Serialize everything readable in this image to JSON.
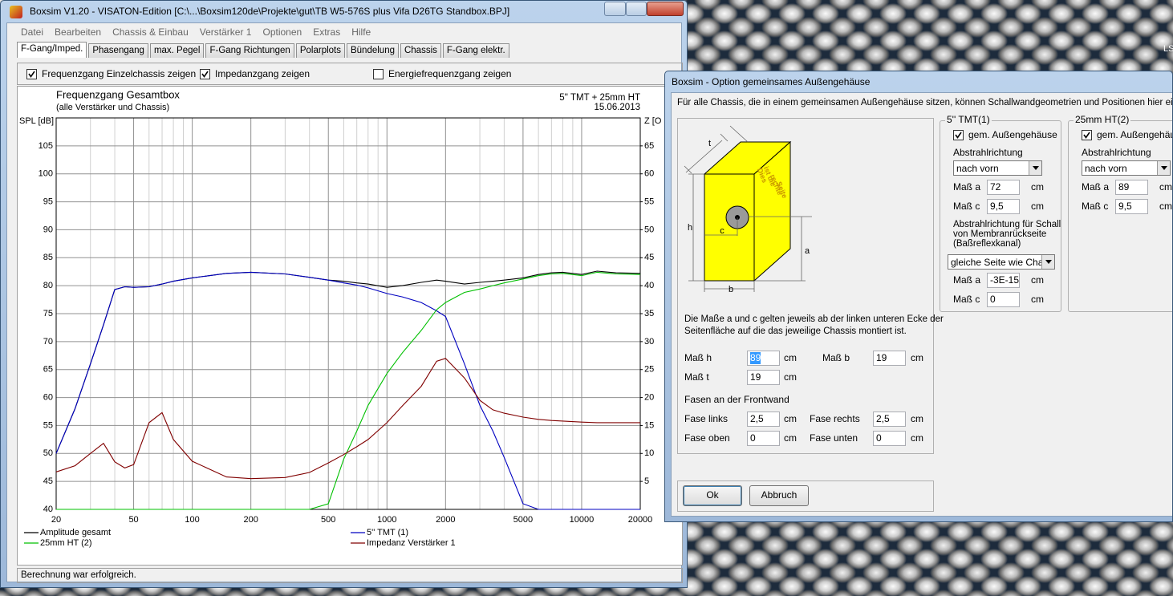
{
  "window": {
    "title": "Boxsim V1.20 - VISATON-Edition [C:\\...\\Boxsim120de\\Projekte\\gut\\TB W5-576S plus Vifa D26TG Standbox.BPJ]",
    "menu": [
      "Datei",
      "Bearbeiten",
      "Chassis & Einbau",
      "Verstärker 1",
      "Optionen",
      "Extras",
      "Hilfe"
    ],
    "tabs": [
      "F-Gang/Imped.",
      "Phasengang",
      "max. Pegel",
      "F-Gang Richtungen",
      "Polarplots",
      "Bündelung",
      "Chassis",
      "F-Gang elektr."
    ],
    "checkboxes": [
      {
        "label": "Frequenzgang Einzelchassis zeigen",
        "checked": true
      },
      {
        "label": "Impedanzgang zeigen",
        "checked": true
      },
      {
        "label": "Energiefrequenzgang zeigen",
        "checked": false
      }
    ],
    "status": "Berechnung war erfolgreich."
  },
  "chart_data": {
    "type": "line",
    "title": "Frequenzgang Gesamtbox",
    "subtitle": "(alle Verstärker und Chassis)",
    "header_lines": [
      "5'' TMT + 25mm HT",
      "15.06.2013"
    ],
    "ylabel": "SPL [dB]",
    "y2label": "Z [O",
    "xscale": "log",
    "xlim": [
      20,
      20000
    ],
    "xticks": [
      20,
      50,
      100,
      200,
      500,
      1000,
      2000,
      5000,
      10000,
      20000
    ],
    "xminor": [
      30,
      40,
      60,
      70,
      80,
      90,
      300,
      400,
      600,
      700,
      800,
      900,
      3000,
      4000,
      6000,
      7000,
      8000,
      9000
    ],
    "ylim": [
      40,
      110
    ],
    "yticks": [
      40,
      45,
      50,
      55,
      60,
      65,
      70,
      75,
      80,
      85,
      90,
      95,
      100,
      105
    ],
    "y2lim": [
      0,
      70
    ],
    "y2ticks": [
      5,
      10,
      15,
      20,
      25,
      30,
      35,
      40,
      45,
      50,
      55,
      60,
      65
    ],
    "grid": true,
    "x": [
      20,
      25,
      30,
      35,
      40,
      45,
      50,
      60,
      70,
      80,
      100,
      150,
      200,
      300,
      400,
      500,
      600,
      700,
      800,
      1000,
      1200,
      1500,
      1800,
      2000,
      2500,
      3000,
      3500,
      4000,
      5000,
      6000,
      7000,
      8000,
      10000,
      12000,
      15000,
      20000
    ],
    "series": [
      {
        "name": "Amplitude gesamt",
        "color": "#000000",
        "values": [
          50,
          58,
          66,
          73,
          79.3,
          79.8,
          79.7,
          79.8,
          80.3,
          80.8,
          81.4,
          82.2,
          82.4,
          82.1,
          81.5,
          81,
          80.8,
          80.5,
          80.3,
          79.7,
          80,
          80.6,
          81,
          80.8,
          80.3,
          80.6,
          80.8,
          81,
          81.4,
          82,
          82.3,
          82.4,
          82,
          82.6,
          82.3,
          82.2
        ]
      },
      {
        "name": "5'' TMT (1)",
        "color": "#0000c0",
        "values": [
          50,
          58,
          66,
          73,
          79.3,
          79.8,
          79.7,
          79.8,
          80.3,
          80.8,
          81.4,
          82.2,
          82.4,
          82.1,
          81.5,
          81,
          80.5,
          80.1,
          79.6,
          78.6,
          78,
          77,
          75.5,
          74.5,
          66,
          58.6,
          54,
          49.3,
          41,
          40,
          40,
          40,
          40,
          40,
          40,
          40
        ]
      },
      {
        "name": "25mm HT (2)",
        "color": "#00c000",
        "values": [
          40,
          40,
          40,
          40,
          40,
          40,
          40,
          40,
          40,
          40,
          40,
          40,
          40,
          40,
          40,
          41,
          49,
          54,
          58.6,
          64.3,
          68,
          72,
          75.7,
          77,
          78.8,
          79.4,
          80,
          80.5,
          81.2,
          81.8,
          82.1,
          82.2,
          81.8,
          82.4,
          82.1,
          82
        ]
      },
      {
        "name": "Impedanz Verstärker 1",
        "color": "#800000",
        "axis": "y2",
        "values": [
          6.7,
          7.8,
          10,
          11.8,
          8.5,
          7.4,
          8,
          15.5,
          17.3,
          12.5,
          8.6,
          5.8,
          5.5,
          5.7,
          6.6,
          8.3,
          9.8,
          11.2,
          12.5,
          15.5,
          18.5,
          22,
          26.5,
          27,
          23.5,
          19.5,
          17.8,
          17.2,
          16.5,
          16.1,
          15.9,
          15.8,
          15.6,
          15.5,
          15.5,
          15.5
        ]
      }
    ]
  },
  "desktop": {
    "corner_text": "LS"
  },
  "dialog": {
    "title": "Boxsim - Option gemeinsames Außengehäuse",
    "intro": "Für alle Chassis, die in einem gemeinsamen Außengehäuse sitzen, können Schallwandgeometrien und Positionen hier einfacher fest",
    "diagram": {
      "t": "t",
      "h": "h",
      "c": "c",
      "b": "b",
      "a": "a",
      "side_lines": [
        "Dies",
        "ist die",
        "rechte",
        "Seite"
      ]
    },
    "note_lines": [
      "Die Maße a und c gelten jeweils ab der linken unteren Ecke der",
      "Seitenfläche auf die das jeweilige Chassis montiert ist."
    ],
    "dimensions": [
      {
        "label": "Maß h",
        "value": "89",
        "unit": "cm"
      },
      {
        "label": "Maß b",
        "value": "19",
        "unit": "cm"
      },
      {
        "label": "Maß t",
        "value": "19",
        "unit": "cm"
      }
    ],
    "bevel_title": "Fasen an der Frontwand",
    "bevels": [
      {
        "label": "Fase links",
        "value": "2,5",
        "unit": "cm"
      },
      {
        "label": "Fase rechts",
        "value": "2,5",
        "unit": "cm"
      },
      {
        "label": "Fase oben",
        "value": "0",
        "unit": "cm"
      },
      {
        "label": "Fase unten",
        "value": "0",
        "unit": "cm"
      }
    ],
    "groups": [
      {
        "title": "5'' TMT(1)",
        "checkbox": "gem. Außengehäuse",
        "checked": true,
        "direction_label": "Abstrahlrichtung",
        "direction": "nach vorn",
        "fields": [
          {
            "label": "Maß a",
            "value": "72",
            "unit": "cm"
          },
          {
            "label": "Maß c",
            "value": "9,5",
            "unit": "cm"
          }
        ],
        "rear_lines": [
          "Abstrahlrichtung für Schall",
          "von Membranrückseite",
          "(Baßreflexkanal)"
        ],
        "rear_direction": "gleiche Seite wie Chass",
        "rear_fields": [
          {
            "label": "Maß a",
            "value": "-3E-15",
            "unit": "cm"
          },
          {
            "label": "Maß c",
            "value": "0",
            "unit": "cm"
          }
        ]
      },
      {
        "title": "25mm HT(2)",
        "checkbox": "gem. Außengehäuse",
        "checked": true,
        "direction_label": "Abstrahlrichtung",
        "direction": "nach vorn",
        "fields": [
          {
            "label": "Maß a",
            "value": "89",
            "unit": "cm"
          },
          {
            "label": "Maß c",
            "value": "9,5",
            "unit": "cm"
          }
        ]
      }
    ],
    "buttons": [
      "Ok",
      "Abbruch"
    ]
  }
}
